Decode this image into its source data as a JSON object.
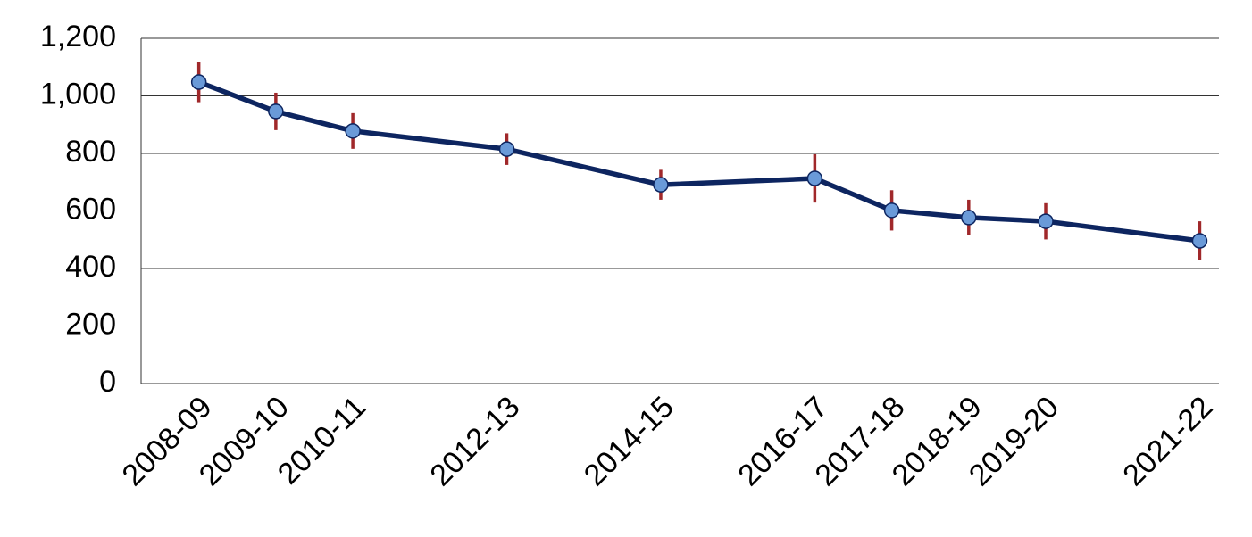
{
  "chart_data": {
    "type": "line",
    "x": [
      2008,
      2009,
      2010,
      2012,
      2014,
      2016,
      2017,
      2018,
      2019,
      2021
    ],
    "xlim": [
      2007.25,
      2021.25
    ],
    "xticks": [
      {
        "value": 2008,
        "label": "2008-09"
      },
      {
        "value": 2009,
        "label": "2009-10"
      },
      {
        "value": 2010,
        "label": "2010-11"
      },
      {
        "value": 2012,
        "label": "2012-13"
      },
      {
        "value": 2014,
        "label": "2014-15"
      },
      {
        "value": 2016,
        "label": "2016-17"
      },
      {
        "value": 2017,
        "label": "2017-18"
      },
      {
        "value": 2018,
        "label": "2018-19"
      },
      {
        "value": 2019,
        "label": "2019-20"
      },
      {
        "value": 2021,
        "label": "2021-22"
      }
    ],
    "series": [
      {
        "color": "#0d2560",
        "marker_color": "#6a9ad8",
        "error_color": "#a0282a",
        "values": [
          1048,
          946,
          878,
          815,
          691,
          713,
          602,
          577,
          564,
          496
        ],
        "errors": [
          70,
          65,
          62,
          55,
          52,
          84,
          70,
          62,
          63,
          68
        ]
      }
    ],
    "ylim": [
      0,
      1200
    ],
    "yticks": [
      0,
      200,
      400,
      600,
      800,
      {
        "value": 1000,
        "label": "1,000"
      },
      {
        "value": 1200,
        "label": "1,200"
      }
    ],
    "grid": true
  }
}
